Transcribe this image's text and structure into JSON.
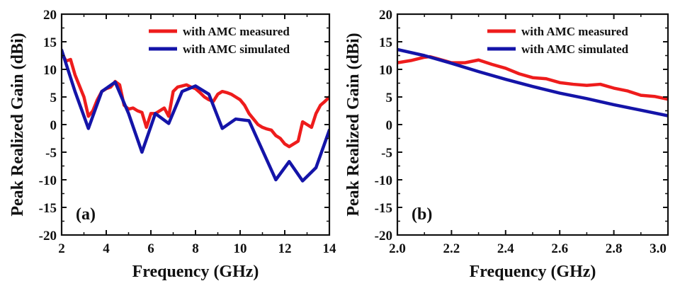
{
  "chart_data": [
    {
      "type": "line",
      "panel_label": "(a)",
      "xlabel": "Frequency (GHz)",
      "ylabel": "Peak Realized Gain (dBi)",
      "xlim": [
        2,
        14
      ],
      "ylim": [
        -20,
        20
      ],
      "x_ticks": [
        "2",
        "4",
        "6",
        "8",
        "10",
        "12",
        "14"
      ],
      "y_ticks": [
        "20",
        "15",
        "10",
        "5",
        "0",
        "-5",
        "-10",
        "-15",
        "-20"
      ],
      "legend_position": "top-right",
      "grid": false,
      "series": [
        {
          "name": "with AMC measured",
          "color": "#ee1c1c",
          "points": [
            [
              2,
              13
            ],
            [
              2.2,
              11.5
            ],
            [
              2.4,
              11.8
            ],
            [
              2.6,
              9
            ],
            [
              2.8,
              7
            ],
            [
              3.0,
              5
            ],
            [
              3.2,
              1.5
            ],
            [
              3.4,
              2.5
            ],
            [
              3.6,
              4.5
            ],
            [
              3.8,
              6
            ],
            [
              4.0,
              6.5
            ],
            [
              4.2,
              6.8
            ],
            [
              4.4,
              7.8
            ],
            [
              4.6,
              7.2
            ],
            [
              4.8,
              3.5
            ],
            [
              5.0,
              2.8
            ],
            [
              5.2,
              3
            ],
            [
              5.4,
              2.5
            ],
            [
              5.6,
              2.2
            ],
            [
              5.8,
              -0.5
            ],
            [
              6.0,
              2
            ],
            [
              6.2,
              2
            ],
            [
              6.4,
              2.5
            ],
            [
              6.6,
              3
            ],
            [
              6.8,
              1.5
            ],
            [
              7.0,
              6
            ],
            [
              7.2,
              6.8
            ],
            [
              7.4,
              7
            ],
            [
              7.6,
              7.2
            ],
            [
              7.8,
              6.8
            ],
            [
              8.0,
              6.5
            ],
            [
              8.2,
              5.8
            ],
            [
              8.4,
              5
            ],
            [
              8.6,
              4.5
            ],
            [
              8.8,
              4.2
            ],
            [
              9.0,
              5.5
            ],
            [
              9.2,
              6
            ],
            [
              9.4,
              5.8
            ],
            [
              9.6,
              5.5
            ],
            [
              9.8,
              5
            ],
            [
              10.0,
              4.5
            ],
            [
              10.2,
              3.5
            ],
            [
              10.4,
              2
            ],
            [
              10.6,
              1
            ],
            [
              10.8,
              0
            ],
            [
              11.0,
              -0.5
            ],
            [
              11.2,
              -0.8
            ],
            [
              11.4,
              -1
            ],
            [
              11.6,
              -2
            ],
            [
              11.8,
              -2.5
            ],
            [
              12.0,
              -3.5
            ],
            [
              12.2,
              -4
            ],
            [
              12.4,
              -3.5
            ],
            [
              12.6,
              -3
            ],
            [
              12.8,
              0.5
            ],
            [
              13.0,
              0
            ],
            [
              13.2,
              -0.5
            ],
            [
              13.4,
              2
            ],
            [
              13.6,
              3.5
            ],
            [
              13.8,
              4.2
            ],
            [
              14.0,
              5
            ]
          ]
        },
        {
          "name": "with AMC simulated",
          "color": "#1414a8",
          "points": [
            [
              2.0,
              13.5
            ],
            [
              2.6,
              6
            ],
            [
              3.2,
              -0.7
            ],
            [
              3.8,
              6
            ],
            [
              4.4,
              7.7
            ],
            [
              5.0,
              2
            ],
            [
              5.6,
              -5
            ],
            [
              6.2,
              2
            ],
            [
              6.8,
              0.2
            ],
            [
              7.4,
              6
            ],
            [
              8.0,
              7
            ],
            [
              8.6,
              5.5
            ],
            [
              9.2,
              -0.7
            ],
            [
              9.8,
              1
            ],
            [
              10.4,
              0.7
            ],
            [
              11.6,
              -10
            ],
            [
              12.2,
              -6.7
            ],
            [
              12.8,
              -10.2
            ],
            [
              13.4,
              -7.8
            ],
            [
              14.0,
              -1
            ]
          ]
        }
      ]
    },
    {
      "type": "line",
      "panel_label": "(b)",
      "xlabel": "Frequency (GHz)",
      "ylabel": "Peak Realized Gain (dBi)",
      "xlim": [
        2.0,
        3.0
      ],
      "ylim": [
        -20,
        20
      ],
      "x_ticks": [
        "2.0",
        "2.2",
        "2.4",
        "2.6",
        "2.8",
        "3.0"
      ],
      "y_ticks": [
        "20",
        "15",
        "10",
        "5",
        "0",
        "-5",
        "-10",
        "-15",
        "-20"
      ],
      "legend_position": "top-right",
      "grid": false,
      "series": [
        {
          "name": "with AMC measured",
          "color": "#ee1c1c",
          "points": [
            [
              2.0,
              11.2
            ],
            [
              2.05,
              11.6
            ],
            [
              2.1,
              12.2
            ],
            [
              2.12,
              12.3
            ],
            [
              2.15,
              11.9
            ],
            [
              2.2,
              11.2
            ],
            [
              2.25,
              11.2
            ],
            [
              2.3,
              11.7
            ],
            [
              2.35,
              10.9
            ],
            [
              2.4,
              10.2
            ],
            [
              2.45,
              9.2
            ],
            [
              2.5,
              8.5
            ],
            [
              2.55,
              8.3
            ],
            [
              2.6,
              7.6
            ],
            [
              2.65,
              7.3
            ],
            [
              2.7,
              7.1
            ],
            [
              2.75,
              7.3
            ],
            [
              2.8,
              6.6
            ],
            [
              2.85,
              6.1
            ],
            [
              2.9,
              5.3
            ],
            [
              2.95,
              5.1
            ],
            [
              3.0,
              4.6
            ]
          ]
        },
        {
          "name": "with AMC simulated",
          "color": "#1414a8",
          "points": [
            [
              2.0,
              13.6
            ],
            [
              2.1,
              12.5
            ],
            [
              2.2,
              11.1
            ],
            [
              2.3,
              9.6
            ],
            [
              2.4,
              8.2
            ],
            [
              2.5,
              6.9
            ],
            [
              2.6,
              5.7
            ],
            [
              2.7,
              4.7
            ],
            [
              2.8,
              3.6
            ],
            [
              2.9,
              2.6
            ],
            [
              3.0,
              1.6
            ]
          ]
        }
      ]
    }
  ]
}
